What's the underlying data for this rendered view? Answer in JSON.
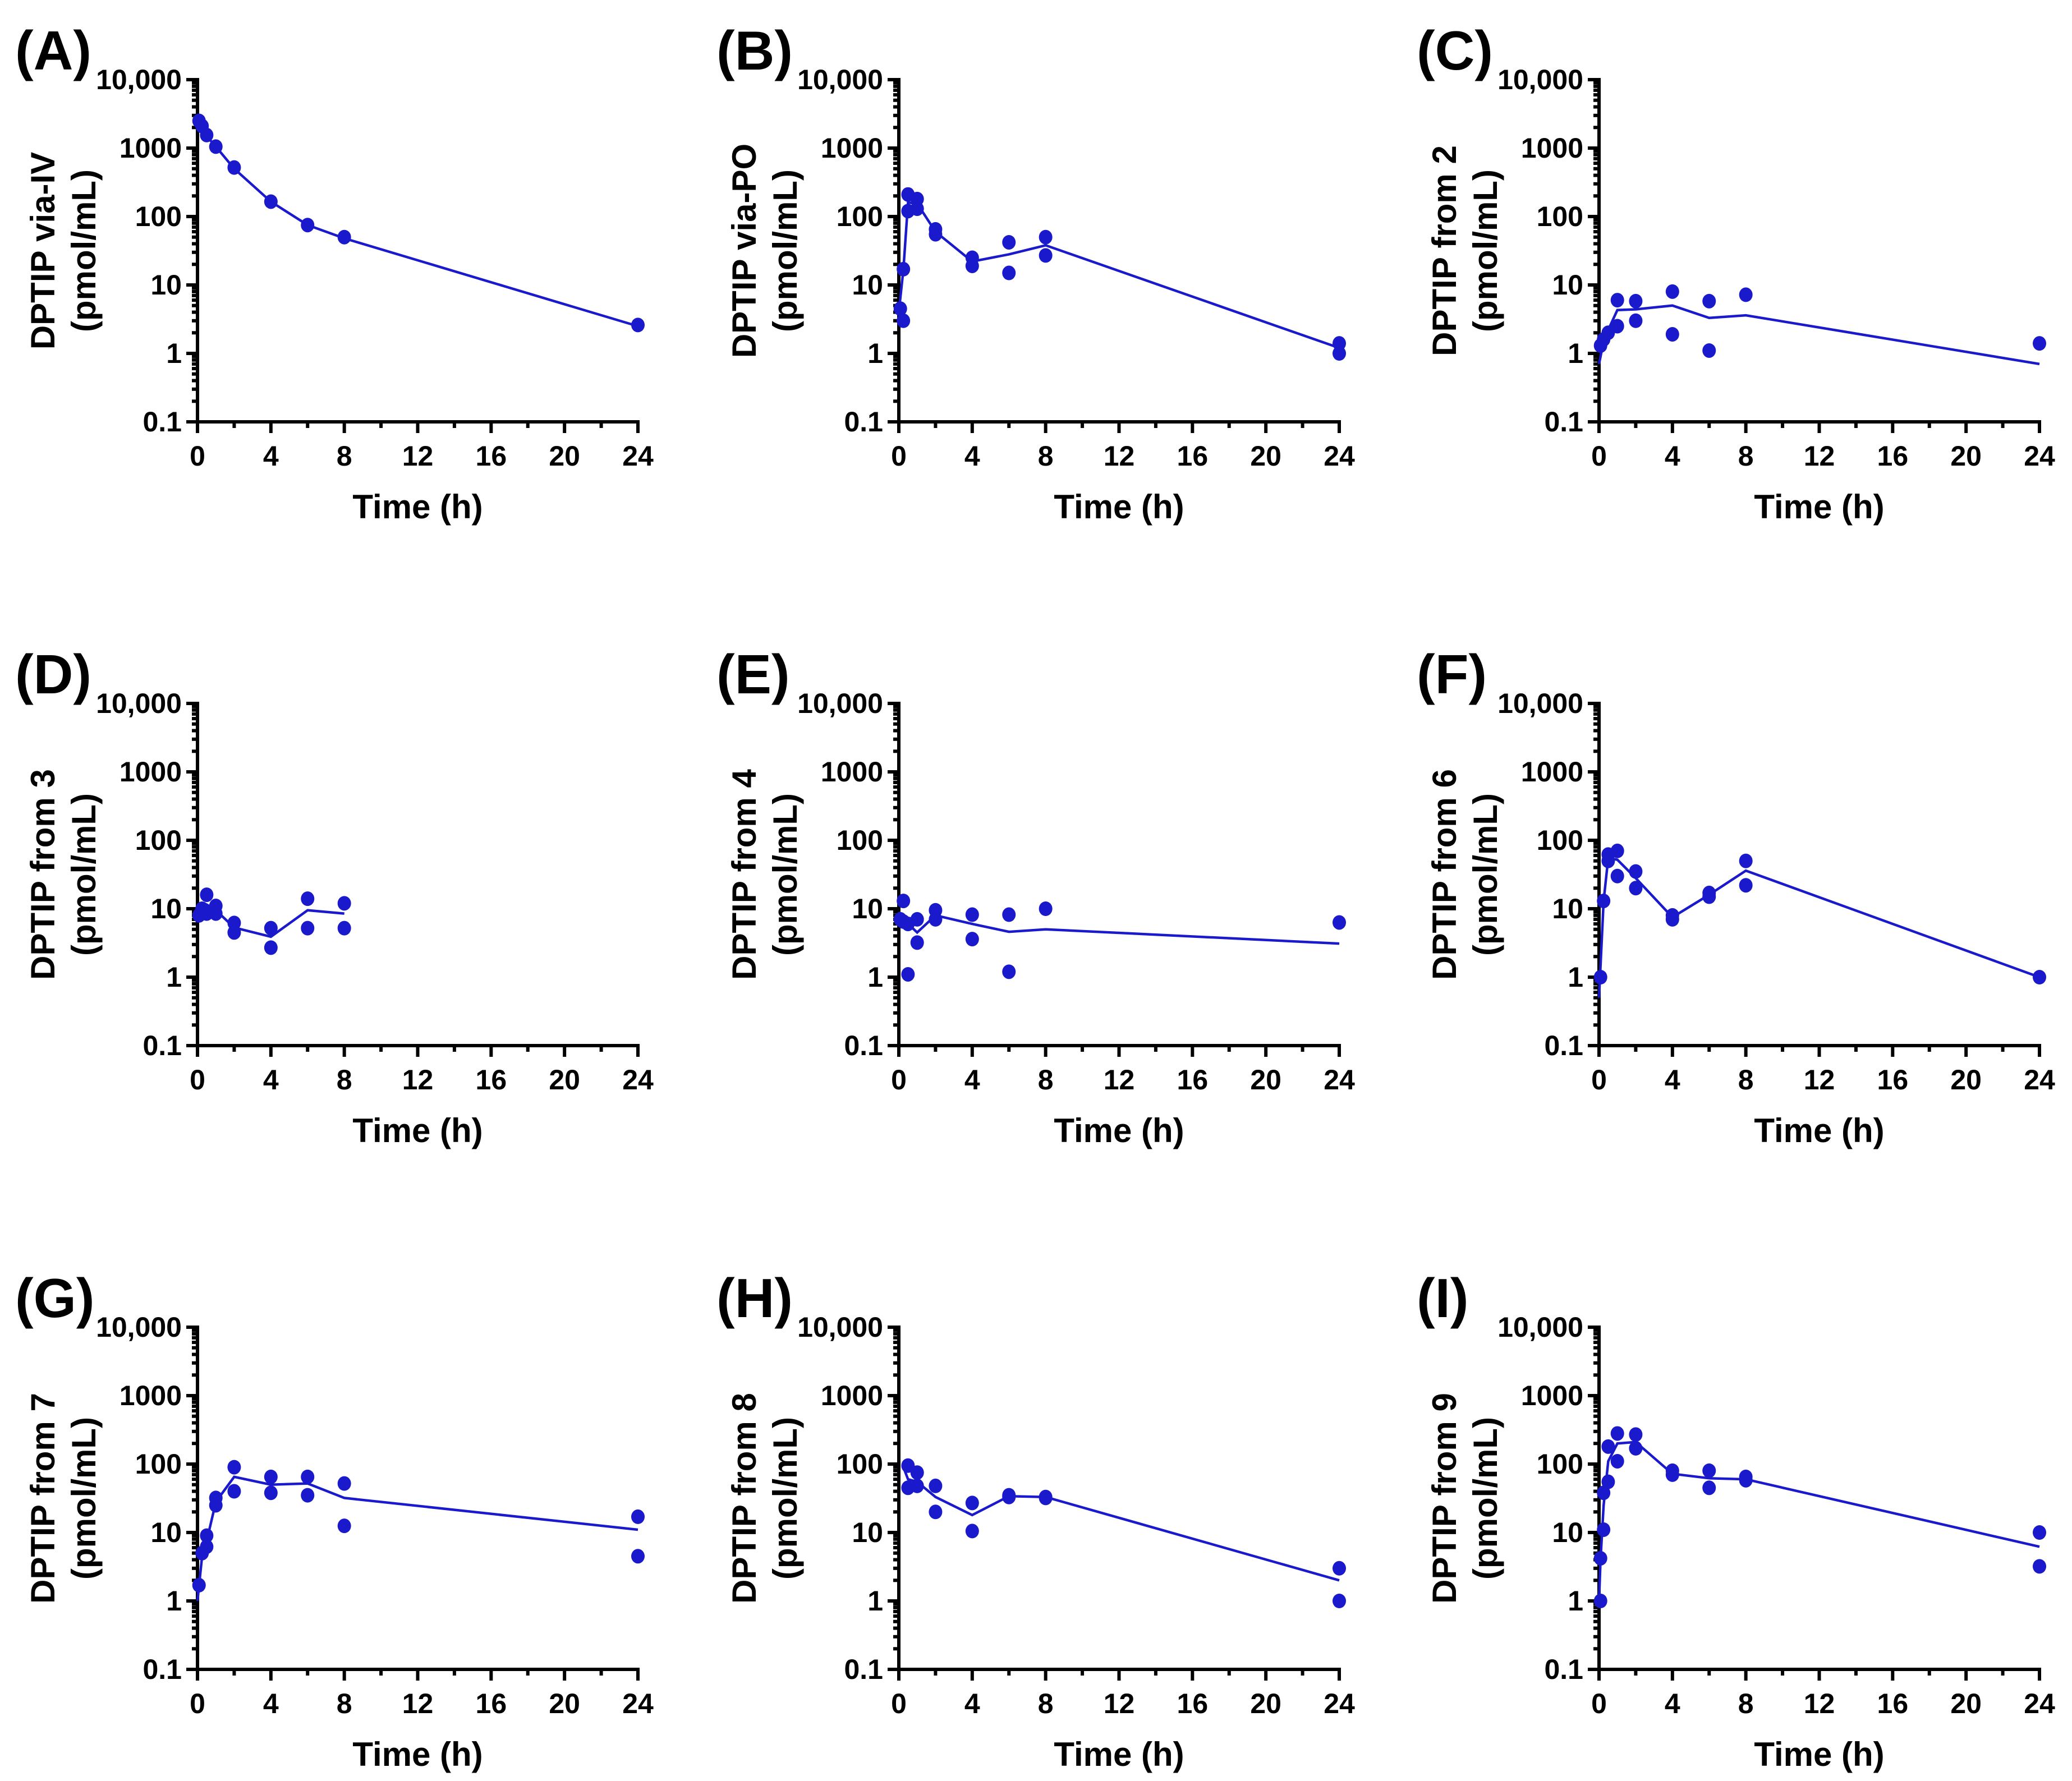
{
  "figure": {
    "time_axis_label": "Time (h)",
    "y_unit_label": "(pmol/mL)",
    "x_ticks": [
      "0",
      "4",
      "8",
      "12",
      "16",
      "20",
      "24"
    ],
    "y_ticks": [
      "0.1",
      "1",
      "10",
      "100",
      "1000",
      "10,000"
    ],
    "colors": {
      "series": "#1a1acc",
      "axes": "#000000"
    }
  },
  "chart_data": [
    {
      "type": "scatter",
      "panel": "(A)",
      "ylabel": "DPTIP via-IV",
      "yunit": "(pmol/mL)",
      "xlabel": "Time (h)",
      "xlim": [
        0,
        24
      ],
      "ylim": [
        0.1,
        10000
      ],
      "yscale": "log",
      "points": [
        [
          0.083,
          2500
        ],
        [
          0.25,
          2100
        ],
        [
          0.5,
          1550
        ],
        [
          1,
          1050
        ],
        [
          2,
          520
        ],
        [
          4,
          165
        ],
        [
          6,
          75
        ],
        [
          8,
          50
        ],
        [
          24,
          2.6
        ]
      ],
      "fit": [
        [
          0.083,
          2300
        ],
        [
          0.25,
          1900
        ],
        [
          0.5,
          1500
        ],
        [
          1,
          1050
        ],
        [
          2,
          500
        ],
        [
          4,
          165
        ],
        [
          6,
          75
        ],
        [
          8,
          48
        ],
        [
          24,
          2.5
        ]
      ]
    },
    {
      "type": "scatter",
      "panel": "(B)",
      "ylabel": "DPTIP via-PO",
      "yunit": "(pmol/mL)",
      "xlabel": "Time (h)",
      "xlim": [
        0,
        24
      ],
      "ylim": [
        0.1,
        10000
      ],
      "yscale": "log",
      "points": [
        [
          0.083,
          4.5
        ],
        [
          0.25,
          3
        ],
        [
          0.25,
          17
        ],
        [
          0.5,
          210
        ],
        [
          0.5,
          120
        ],
        [
          1,
          180
        ],
        [
          1,
          130
        ],
        [
          2,
          65
        ],
        [
          2,
          55
        ],
        [
          4,
          25
        ],
        [
          4,
          19
        ],
        [
          6,
          42
        ],
        [
          6,
          15
        ],
        [
          8,
          50
        ],
        [
          8,
          27
        ],
        [
          24,
          1.4
        ],
        [
          24,
          1.0
        ]
      ],
      "fit": [
        [
          0,
          4
        ],
        [
          0.25,
          17
        ],
        [
          0.5,
          160
        ],
        [
          1,
          155
        ],
        [
          2,
          60
        ],
        [
          4,
          22
        ],
        [
          6,
          28
        ],
        [
          8,
          38
        ],
        [
          24,
          1.2
        ]
      ]
    },
    {
      "type": "scatter",
      "panel": "(C)",
      "ylabel": "DPTIP from 2",
      "yunit": "(pmol/mL)",
      "xlabel": "Time (h)",
      "xlim": [
        0,
        24
      ],
      "ylim": [
        0.1,
        10000
      ],
      "yscale": "log",
      "points": [
        [
          0.083,
          1.3
        ],
        [
          0.25,
          1.6
        ],
        [
          0.5,
          2.0
        ],
        [
          1,
          2.5
        ],
        [
          1,
          6
        ],
        [
          2,
          5.8
        ],
        [
          2,
          3
        ],
        [
          4,
          8
        ],
        [
          4,
          1.9
        ],
        [
          6,
          5.8
        ],
        [
          6,
          1.1
        ],
        [
          8,
          7.2
        ],
        [
          24,
          1.4
        ]
      ],
      "fit": [
        [
          0,
          0.7
        ],
        [
          0.25,
          1.5
        ],
        [
          0.5,
          2.2
        ],
        [
          1,
          4.3
        ],
        [
          2,
          4.4
        ],
        [
          4,
          5.0
        ],
        [
          6,
          3.3
        ],
        [
          8,
          3.6
        ],
        [
          24,
          0.7
        ]
      ]
    },
    {
      "type": "scatter",
      "panel": "(D)",
      "ylabel": "DPTIP from 3",
      "yunit": "(pmol/mL)",
      "xlabel": "Time (h)",
      "xlim": [
        0,
        24
      ],
      "ylim": [
        0.1,
        10000
      ],
      "yscale": "log",
      "points": [
        [
          0.083,
          8
        ],
        [
          0.25,
          10
        ],
        [
          0.5,
          16
        ],
        [
          0.5,
          8.5
        ],
        [
          1,
          11
        ],
        [
          1,
          8.5
        ],
        [
          2,
          6.2
        ],
        [
          2,
          4.5
        ],
        [
          4,
          5.2
        ],
        [
          4,
          2.7
        ],
        [
          6,
          14
        ],
        [
          6,
          5.2
        ],
        [
          8,
          12
        ],
        [
          8,
          5.2
        ]
      ],
      "fit": [
        [
          0.083,
          9
        ],
        [
          0.25,
          12
        ],
        [
          0.5,
          11.5
        ],
        [
          1,
          9.5
        ],
        [
          2,
          5.3
        ],
        [
          4,
          3.9
        ],
        [
          6,
          9.5
        ],
        [
          8,
          8.5
        ]
      ]
    },
    {
      "type": "scatter",
      "panel": "(E)",
      "ylabel": "DPTIP from 4",
      "yunit": "(pmol/mL)",
      "xlabel": "Time (h)",
      "xlim": [
        0,
        24
      ],
      "ylim": [
        0.1,
        10000
      ],
      "yscale": "log",
      "points": [
        [
          0.083,
          7
        ],
        [
          0.25,
          13
        ],
        [
          0.25,
          6.5
        ],
        [
          0.5,
          1.1
        ],
        [
          0.5,
          6
        ],
        [
          1,
          7
        ],
        [
          1,
          3.2
        ],
        [
          2,
          9.5
        ],
        [
          2,
          7
        ],
        [
          4,
          8.2
        ],
        [
          4,
          3.6
        ],
        [
          6,
          8.2
        ],
        [
          6,
          1.2
        ],
        [
          8,
          10
        ],
        [
          24,
          6.3
        ]
      ],
      "fit": [
        [
          0,
          9
        ],
        [
          0.25,
          7
        ],
        [
          0.5,
          6
        ],
        [
          1,
          4.5
        ],
        [
          2,
          8
        ],
        [
          4,
          6
        ],
        [
          6,
          4.6
        ],
        [
          8,
          5
        ],
        [
          24,
          3.1
        ]
      ]
    },
    {
      "type": "scatter",
      "panel": "(F)",
      "ylabel": "DPTIP from  6",
      "yunit": "(pmol/mL)",
      "xlabel": "Time (h)",
      "xlim": [
        0,
        24
      ],
      "ylim": [
        0.1,
        10000
      ],
      "yscale": "log",
      "points": [
        [
          0.083,
          1
        ],
        [
          0.25,
          13
        ],
        [
          0.5,
          62
        ],
        [
          0.5,
          50
        ],
        [
          1,
          70
        ],
        [
          1,
          30
        ],
        [
          2,
          35
        ],
        [
          2,
          20
        ],
        [
          4,
          8
        ],
        [
          4,
          7
        ],
        [
          6,
          17
        ],
        [
          6,
          15
        ],
        [
          8,
          50
        ],
        [
          8,
          22
        ],
        [
          24,
          1.0
        ]
      ],
      "fit": [
        [
          0,
          0.5
        ],
        [
          0.25,
          13
        ],
        [
          0.5,
          55
        ],
        [
          1,
          52
        ],
        [
          2,
          28
        ],
        [
          4,
          7.5
        ],
        [
          6,
          16
        ],
        [
          8,
          36
        ],
        [
          24,
          1.0
        ]
      ]
    },
    {
      "type": "scatter",
      "panel": "(G)",
      "ylabel": "DPTIP from 7",
      "yunit": "(pmol/mL)",
      "xlabel": "Time (h)",
      "xlim": [
        0,
        24
      ],
      "ylim": [
        0.1,
        10000
      ],
      "yscale": "log",
      "points": [
        [
          0.083,
          1.7
        ],
        [
          0.25,
          5
        ],
        [
          0.5,
          9
        ],
        [
          0.5,
          6.2
        ],
        [
          1,
          32
        ],
        [
          1,
          25
        ],
        [
          2,
          90
        ],
        [
          2,
          40
        ],
        [
          4,
          65
        ],
        [
          4,
          38
        ],
        [
          6,
          65
        ],
        [
          6,
          35
        ],
        [
          8,
          52
        ],
        [
          8,
          12.5
        ],
        [
          24,
          17
        ],
        [
          24,
          4.5
        ]
      ],
      "fit": [
        [
          0,
          1
        ],
        [
          0.25,
          4.5
        ],
        [
          0.5,
          7.5
        ],
        [
          1,
          28
        ],
        [
          2,
          65
        ],
        [
          4,
          50
        ],
        [
          6,
          52
        ],
        [
          8,
          32
        ],
        [
          24,
          11
        ]
      ]
    },
    {
      "type": "scatter",
      "panel": "(H)",
      "ylabel": "DPTIP from 8",
      "yunit": "(pmol/mL)",
      "xlabel": "Time (h)",
      "xlim": [
        0,
        24
      ],
      "ylim": [
        0.1,
        10000
      ],
      "yscale": "log",
      "points": [
        [
          0.5,
          95
        ],
        [
          0.5,
          45
        ],
        [
          1,
          75
        ],
        [
          1,
          48
        ],
        [
          2,
          48
        ],
        [
          2,
          20
        ],
        [
          4,
          27
        ],
        [
          4,
          10.5
        ],
        [
          6,
          35
        ],
        [
          6,
          33
        ],
        [
          8,
          33
        ],
        [
          8,
          32
        ],
        [
          24,
          3.0
        ],
        [
          24,
          1.0
        ]
      ],
      "fit": [
        [
          0.25,
          90
        ],
        [
          0.5,
          60
        ],
        [
          1,
          55
        ],
        [
          2,
          33
        ],
        [
          4,
          18
        ],
        [
          6,
          34
        ],
        [
          8,
          33
        ],
        [
          24,
          2
        ]
      ]
    },
    {
      "type": "scatter",
      "panel": "(I)",
      "ylabel": "DPTIP from 9",
      "yunit": "(pmol/mL)",
      "xlabel": "Time (h)",
      "xlim": [
        0,
        24
      ],
      "ylim": [
        0.1,
        10000
      ],
      "yscale": "log",
      "points": [
        [
          0.083,
          1.0
        ],
        [
          0.083,
          4.2
        ],
        [
          0.25,
          11
        ],
        [
          0.25,
          38
        ],
        [
          0.5,
          55
        ],
        [
          0.5,
          180
        ],
        [
          1,
          280
        ],
        [
          1,
          110
        ],
        [
          2,
          270
        ],
        [
          2,
          170
        ],
        [
          4,
          80
        ],
        [
          4,
          70
        ],
        [
          6,
          80
        ],
        [
          6,
          45
        ],
        [
          8,
          65
        ],
        [
          8,
          58
        ],
        [
          24,
          10
        ],
        [
          24,
          3.2
        ]
      ],
      "fit": [
        [
          0,
          1
        ],
        [
          0.083,
          4
        ],
        [
          0.25,
          25
        ],
        [
          0.5,
          110
        ],
        [
          1,
          200
        ],
        [
          2,
          210
        ],
        [
          4,
          72
        ],
        [
          6,
          62
        ],
        [
          8,
          60
        ],
        [
          24,
          6.2
        ]
      ]
    }
  ]
}
